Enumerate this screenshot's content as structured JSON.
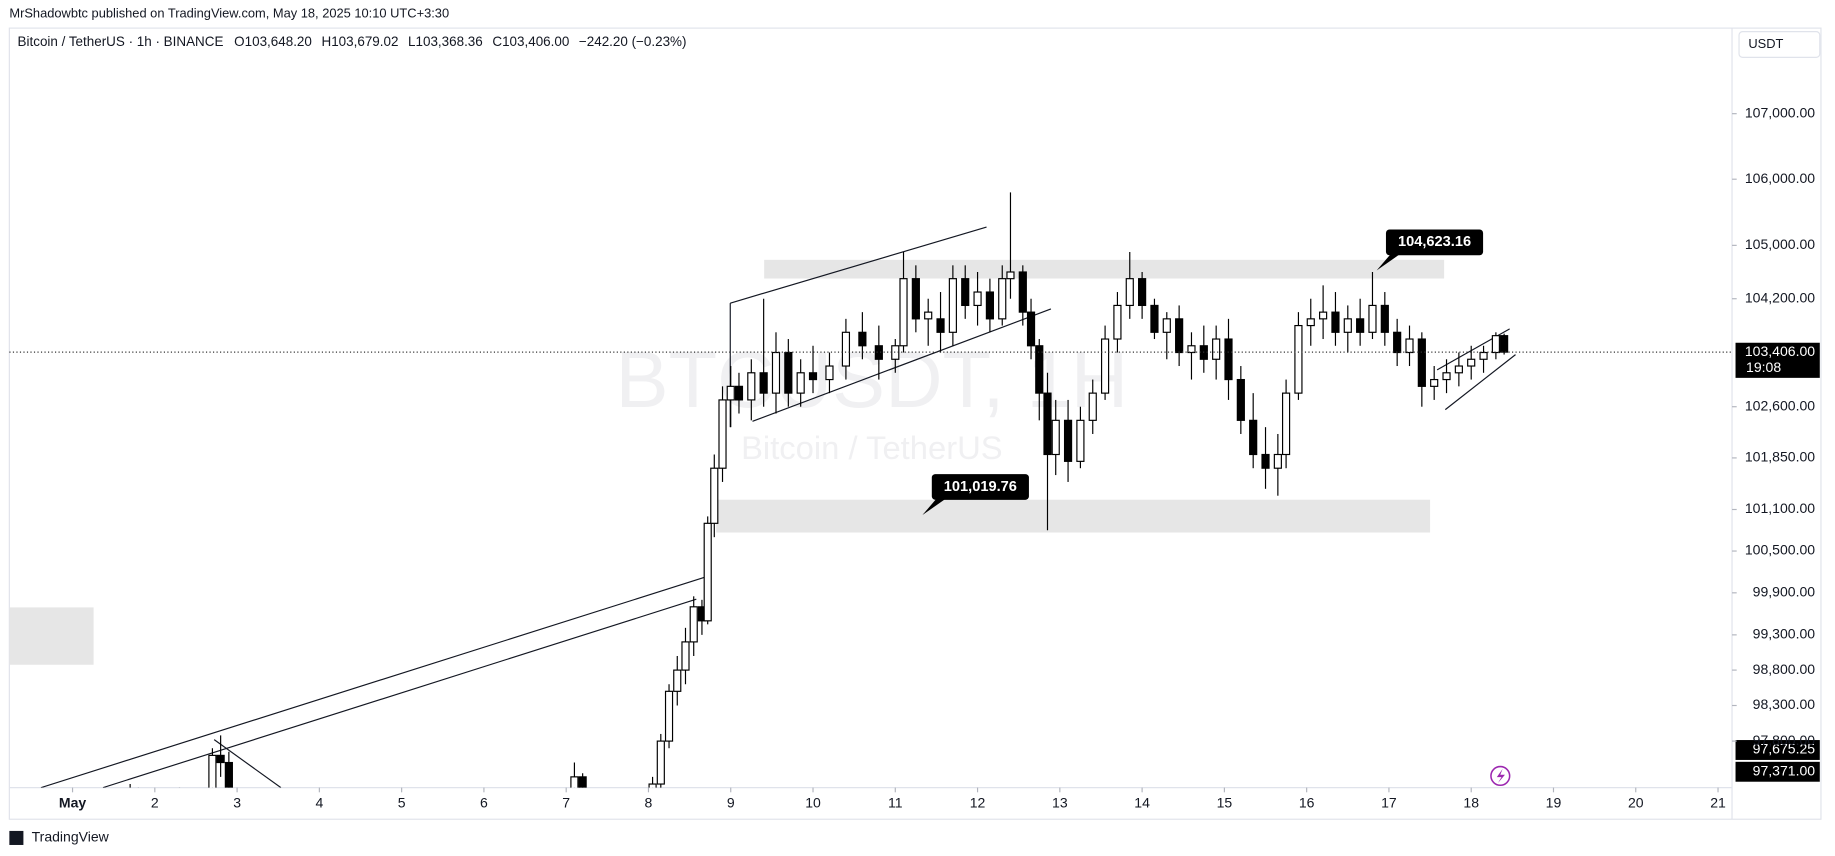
{
  "chart_data": {
    "type": "candlestick",
    "publisher_note": "MrShadowbtc published on TradingView.com, May 18, 2025 10:10 UTC+3:30",
    "title": "Bitcoin / TetherUS · 1h · BINANCE",
    "legend_values": [
      "O103,648.20",
      "H103,679.02",
      "L103,368.36",
      "C103,406.00",
      "−242.20 (−0.23%)"
    ],
    "currency": "USDT",
    "watermark": [
      "BTCUSDT, 1H",
      "Bitcoin / TetherUS"
    ],
    "footer": "TradingView",
    "log_scale": true,
    "up_color": "#ffffff",
    "down_color": "#000000",
    "wick_color": "#000000",
    "xlim": [
      0.232,
      21.17
    ],
    "xticks": [
      {
        "value": 1,
        "label": "May"
      },
      2,
      3,
      4,
      5,
      6,
      7,
      8,
      9,
      10,
      11,
      12,
      13,
      14,
      15,
      16,
      17,
      18,
      19,
      20,
      21
    ],
    "ylim": [
      97150,
      108320
    ],
    "yticks": [
      {
        "value": 107000,
        "label": "107,000.00"
      },
      {
        "value": 106000,
        "label": "106,000.00"
      },
      {
        "value": 105000,
        "label": "105,000.00"
      },
      {
        "value": 104200,
        "label": "104,200.00"
      },
      {
        "value": 102600,
        "label": "102,600.00"
      },
      {
        "value": 101850,
        "label": "101,850.00"
      },
      {
        "value": 101100,
        "label": "101,100.00"
      },
      {
        "value": 100500,
        "label": "100,500.00"
      },
      {
        "value": 99900,
        "label": "99,900.00"
      },
      {
        "value": 99300,
        "label": "99,300.00"
      },
      {
        "value": 98800,
        "label": "98,800.00"
      },
      {
        "value": 98300,
        "label": "98,300.00"
      },
      {
        "value": 97800,
        "label": "97,800.00"
      }
    ],
    "last_price": {
      "value": 103406,
      "label": "103,406.00",
      "countdown": "19:08"
    },
    "price_labels": [
      {
        "value": 97675.25,
        "label": "97,675.25"
      },
      {
        "value": 97371,
        "label": "97,371.00"
      }
    ],
    "annotations": [
      {
        "x": 16.85,
        "value": 104623.16,
        "label": "104,623.16"
      },
      {
        "x": 11.33,
        "value": 101019.76,
        "label": "101,019.76"
      }
    ],
    "candles": {
      "x": [
        1.7,
        1.8,
        2.3,
        2.7,
        2.8,
        2.9,
        7.1,
        7.2,
        8.05,
        8.15,
        8.25,
        8.35,
        8.45,
        8.55,
        8.65,
        8.72,
        8.8,
        8.9,
        9.0,
        9.1,
        9.25,
        9.4,
        9.55,
        9.7,
        9.85,
        10.0,
        10.2,
        10.4,
        10.6,
        10.8,
        11.0,
        11.1,
        11.25,
        11.4,
        11.55,
        11.7,
        11.85,
        12.0,
        12.15,
        12.3,
        12.4,
        12.55,
        12.65,
        12.75,
        12.85,
        12.95,
        13.1,
        13.25,
        13.4,
        13.55,
        13.7,
        13.85,
        14.0,
        14.15,
        14.3,
        14.45,
        14.6,
        14.75,
        14.9,
        15.05,
        15.2,
        15.35,
        15.5,
        15.65,
        15.75,
        15.9,
        16.05,
        16.2,
        16.35,
        16.5,
        16.65,
        16.8,
        16.95,
        17.1,
        17.25,
        17.4,
        17.55,
        17.7,
        17.85,
        18.0,
        18.15,
        18.3,
        18.4
      ],
      "open": [
        96900,
        97000,
        96800,
        97100,
        97600,
        97500,
        96900,
        97300,
        96900,
        97200,
        97800,
        98500,
        98800,
        99200,
        99700,
        99500,
        100900,
        101700,
        102700,
        102900,
        102700,
        103100,
        102800,
        103400,
        102800,
        103100,
        103000,
        103200,
        103700,
        103500,
        103300,
        103500,
        104500,
        103900,
        103900,
        103700,
        104500,
        104100,
        104300,
        103900,
        104500,
        104600,
        104000,
        103500,
        102800,
        101900,
        102400,
        101800,
        102400,
        102800,
        103600,
        104100,
        104500,
        104100,
        103700,
        103900,
        103400,
        103500,
        103300,
        103600,
        103000,
        102400,
        101900,
        101700,
        101900,
        102800,
        103800,
        103900,
        104000,
        103700,
        103900,
        103700,
        104100,
        103700,
        103400,
        103600,
        102900,
        103000,
        103100,
        103200,
        103300,
        103400,
        103650
      ],
      "high": [
        97200,
        97150,
        97150,
        97700,
        97880,
        97650,
        97500,
        97350,
        97300,
        97900,
        98600,
        99000,
        99400,
        99850,
        99800,
        101000,
        101900,
        102900,
        103200,
        103100,
        103300,
        104200,
        103700,
        103600,
        103300,
        103500,
        103400,
        103900,
        104000,
        103800,
        103600,
        104900,
        104700,
        104200,
        104300,
        104700,
        104700,
        104600,
        104500,
        104700,
        105800,
        104700,
        104200,
        103600,
        103100,
        102700,
        102700,
        102600,
        103000,
        103800,
        104300,
        104900,
        104600,
        104200,
        104000,
        104100,
        103700,
        103800,
        103800,
        103900,
        103200,
        102800,
        102300,
        102200,
        103000,
        104000,
        104200,
        104400,
        104300,
        104100,
        104200,
        104600,
        104300,
        103900,
        103800,
        103700,
        103200,
        103300,
        103400,
        103500,
        103500,
        103700,
        103680
      ],
      "low": [
        96600,
        96700,
        96500,
        96900,
        97300,
        97000,
        96700,
        96800,
        96700,
        97100,
        97700,
        98300,
        98600,
        99000,
        99300,
        99450,
        100700,
        101500,
        102300,
        102500,
        102400,
        102600,
        102500,
        102600,
        102600,
        102800,
        102800,
        103000,
        103300,
        103000,
        103100,
        103400,
        103700,
        103500,
        103400,
        103500,
        103900,
        103800,
        103700,
        103800,
        104200,
        103800,
        103300,
        102400,
        100800,
        101600,
        101500,
        101700,
        102200,
        102700,
        103400,
        103900,
        103900,
        103600,
        103300,
        103200,
        103000,
        103100,
        103000,
        102700,
        102200,
        101700,
        101400,
        101300,
        101700,
        102700,
        103500,
        103600,
        103500,
        103400,
        103500,
        103600,
        103500,
        103200,
        103200,
        102600,
        102700,
        102800,
        102900,
        103000,
        103100,
        103300,
        103370
      ],
      "close": [
        97000,
        96800,
        96900,
        97600,
        97500,
        97100,
        97300,
        96900,
        97200,
        97800,
        98500,
        98800,
        99200,
        99700,
        99500,
        100900,
        101700,
        102700,
        102900,
        102700,
        103100,
        102800,
        103400,
        102800,
        103100,
        103000,
        103200,
        103700,
        103500,
        103300,
        103500,
        104500,
        103900,
        104000,
        103700,
        104500,
        104100,
        104300,
        103900,
        104500,
        104600,
        104000,
        103500,
        102800,
        101900,
        102400,
        101800,
        102400,
        102800,
        103600,
        104100,
        104500,
        104100,
        103700,
        103900,
        103400,
        103500,
        103300,
        103600,
        103000,
        102400,
        101900,
        101700,
        101900,
        102800,
        103800,
        103900,
        104000,
        103700,
        103900,
        103700,
        104100,
        103700,
        103400,
        103600,
        102900,
        103000,
        103100,
        103200,
        103300,
        103400,
        103650,
        103406
      ]
    }
  }
}
